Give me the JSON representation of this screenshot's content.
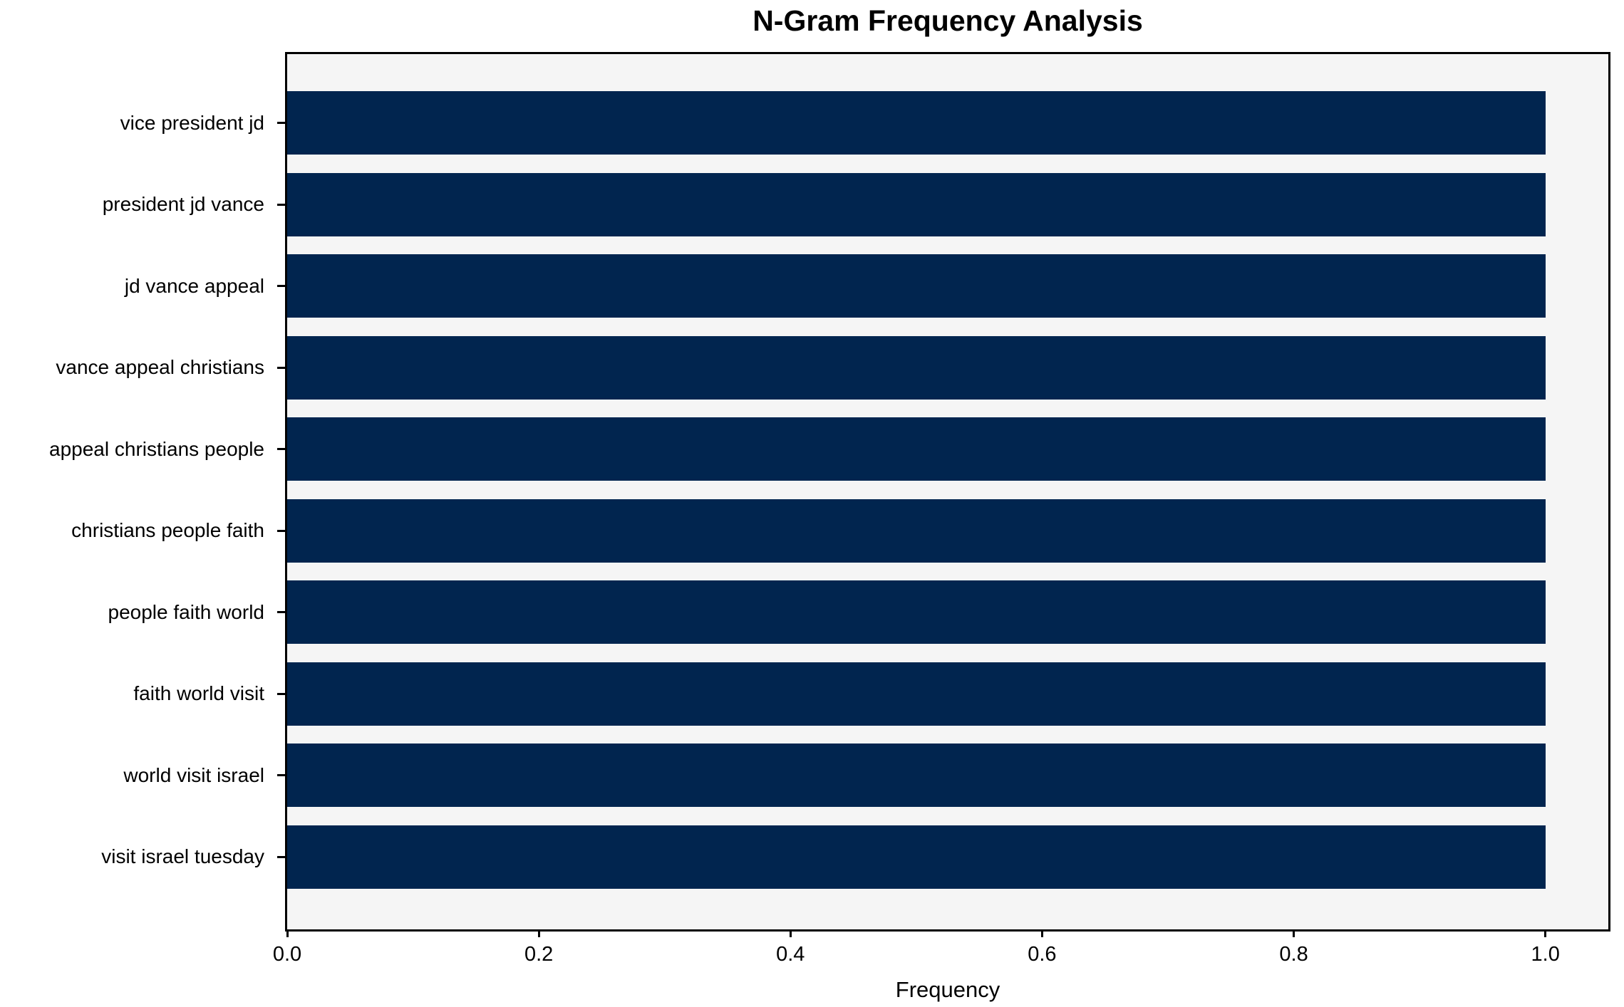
{
  "title": "N-Gram Frequency Analysis",
  "xlabel": "Frequency",
  "chart_data": {
    "type": "bar",
    "orientation": "horizontal",
    "title": "N-Gram Frequency Analysis",
    "xlabel": "Frequency",
    "ylabel": "",
    "categories": [
      "vice president jd",
      "president jd vance",
      "jd vance appeal",
      "vance appeal christians",
      "appeal christians people",
      "christians people faith",
      "people faith world",
      "faith world visit",
      "world visit israel",
      "visit israel tuesday"
    ],
    "values": [
      1.0,
      1.0,
      1.0,
      1.0,
      1.0,
      1.0,
      1.0,
      1.0,
      1.0,
      1.0
    ],
    "xlim": [
      0.0,
      1.05
    ],
    "xticks": [
      0.0,
      0.2,
      0.4,
      0.6,
      0.8,
      1.0
    ],
    "xtick_labels": [
      "0.0",
      "0.2",
      "0.4",
      "0.6",
      "0.8",
      "1.0"
    ],
    "grid": false,
    "legend": null,
    "colors": {
      "bar": "#01254f",
      "plot_background": "#f5f5f5",
      "figure_background": "#ffffff",
      "spine": "#000000",
      "text": "#000000"
    }
  }
}
